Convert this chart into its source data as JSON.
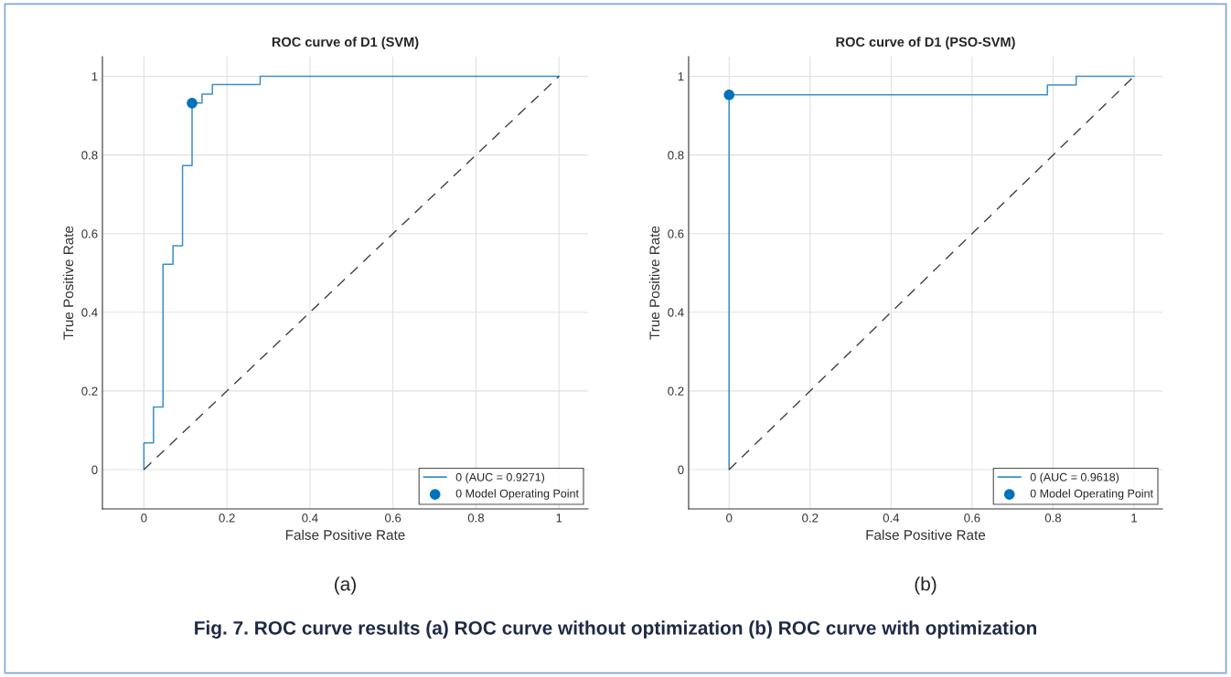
{
  "chart_data": [
    {
      "type": "step",
      "title": "ROC curve of D1 (SVM)",
      "xlabel": "False Positive Rate",
      "ylabel": "True Positive Rate",
      "xlim": [
        -0.1,
        1.07
      ],
      "ylim": [
        -0.1,
        1.05
      ],
      "xticks": [
        0,
        0.2,
        0.4,
        0.6,
        0.8,
        1
      ],
      "yticks": [
        0,
        0.2,
        0.4,
        0.6,
        0.8,
        1
      ],
      "grid": true,
      "legend": "bottom right",
      "series": [
        {
          "name": "0 (AUC = 0.9271)",
          "color": "#3d8fc8",
          "x": [
            0,
            0,
            0.023,
            0.046,
            0.07,
            0.093,
            0.116,
            0.14,
            0.165,
            0.28,
            1
          ],
          "values": [
            0,
            0.068,
            0.159,
            0.522,
            0.569,
            0.773,
            0.932,
            0.955,
            0.979,
            1.0,
            1.0
          ]
        },
        {
          "type": "line",
          "color": "#404040",
          "line_style": "dashed",
          "x": [
            0,
            1
          ],
          "values": [
            0,
            1
          ]
        },
        {
          "name": "0 Model Operating Point",
          "type": "scatter",
          "color": "#0072bd",
          "marker": "circle",
          "x": [
            0.116
          ],
          "values": [
            0.932
          ]
        }
      ],
      "annotations": [
        "(a)"
      ]
    },
    {
      "type": "step",
      "title": "ROC curve of D1 (PSO-SVM)",
      "xlabel": "False Positive Rate",
      "ylabel": "True Positive Rate",
      "xlim": [
        -0.1,
        1.07
      ],
      "ylim": [
        -0.1,
        1.05
      ],
      "xticks": [
        0,
        0.2,
        0.4,
        0.6,
        0.8,
        1
      ],
      "yticks": [
        0,
        0.2,
        0.4,
        0.6,
        0.8,
        1
      ],
      "grid": true,
      "legend": "bottom right",
      "series": [
        {
          "name": "0 (AUC = 0.9618)",
          "color": "#3d8fc8",
          "x": [
            0,
            0,
            0.786,
            0.857,
            1
          ],
          "values": [
            0,
            0.953,
            0.978,
            1.0,
            1.0
          ]
        },
        {
          "type": "line",
          "color": "#404040",
          "line_style": "dashed",
          "x": [
            0,
            1
          ],
          "values": [
            0,
            1
          ]
        },
        {
          "name": "0 Model Operating Point",
          "type": "scatter",
          "color": "#0072bd",
          "marker": "circle",
          "x": [
            0
          ],
          "values": [
            0.953
          ]
        }
      ],
      "annotations": [
        "(b)",
        "Fig. 7. ROC curve results (a) ROC curve without optimization (b) ROC curve with optimization"
      ]
    }
  ]
}
